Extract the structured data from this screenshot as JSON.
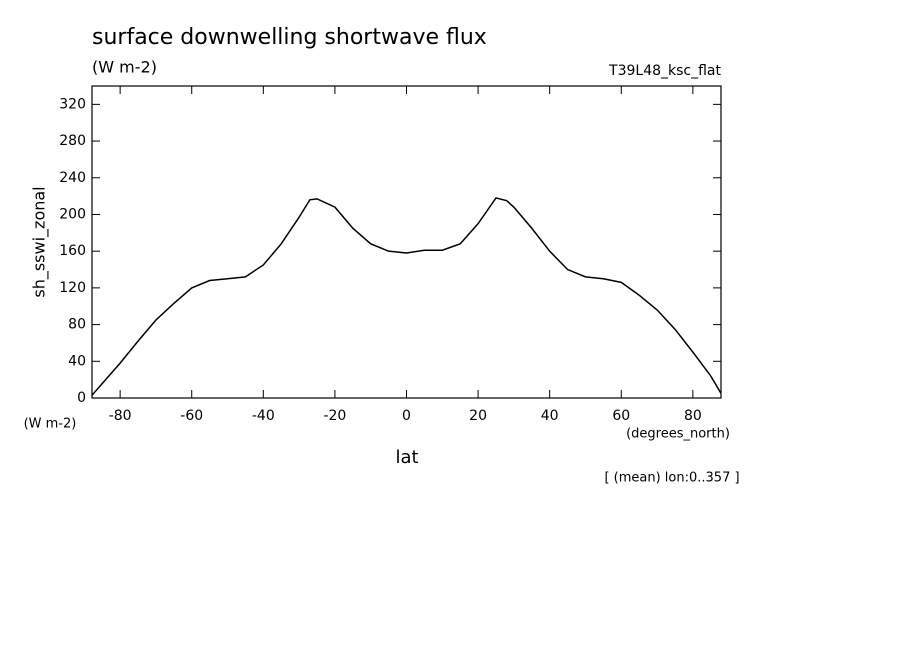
{
  "chart_data": {
    "type": "line",
    "title": "surface downwelling shortwave flux",
    "subtitle": "(W m-2)",
    "dataset": "T39L48_ksc_flat",
    "ylabel": "sh_sswi_zonal",
    "yunits": "(W m-2)",
    "xlabel": "lat",
    "xunits": "(degrees_north)",
    "note": "[ (mean) lon:0..357 ]",
    "color": "#000000",
    "x": [
      -87.86,
      -80,
      -75,
      -70,
      -65,
      -60,
      -55,
      -50,
      -45,
      -40,
      -35,
      -30,
      -27,
      -25,
      -20,
      -15,
      -10,
      -5,
      0,
      5,
      10,
      15,
      20,
      25,
      28,
      30,
      35,
      40,
      45,
      50,
      55,
      60,
      65,
      70,
      75,
      80,
      85,
      87.86
    ],
    "values": [
      3,
      38,
      62,
      85,
      103,
      120,
      128,
      130,
      132,
      145,
      168,
      197,
      216,
      217,
      208,
      185,
      168,
      160,
      158,
      161,
      161,
      168,
      190,
      218,
      215,
      208,
      185,
      160,
      140,
      132,
      130,
      126,
      112,
      96,
      75,
      50,
      24,
      5
    ],
    "xlim": [
      -87.86,
      87.86
    ],
    "ylim": [
      0,
      340
    ],
    "xticks": [
      -80,
      -60,
      -40,
      -20,
      0,
      20,
      40,
      60,
      80
    ],
    "yticks": [
      0,
      40,
      80,
      120,
      160,
      200,
      240,
      280,
      320
    ]
  }
}
